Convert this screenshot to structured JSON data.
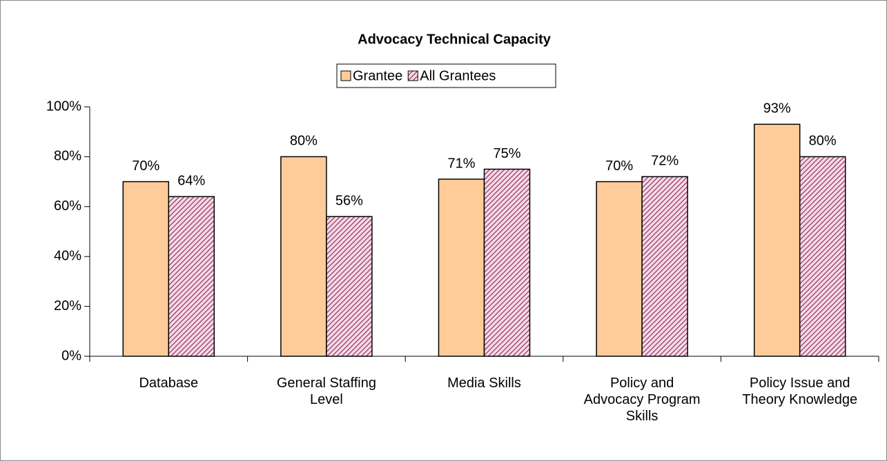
{
  "chart_data": {
    "type": "bar",
    "title": "Advocacy Technical Capacity",
    "categories": [
      "Database",
      "General Staffing Level",
      "Media Skills",
      "Policy and Advocacy Program Skills",
      "Policy Issue and Theory Knowledge"
    ],
    "series": [
      {
        "name": "Grantee",
        "color": "#ffcc99",
        "values": [
          70,
          80,
          71,
          70,
          93
        ],
        "value_labels": [
          "70%",
          "80%",
          "71%",
          "70%",
          "93%"
        ]
      },
      {
        "name": "All Grantees",
        "color": "#993366",
        "pattern": "hatch",
        "values": [
          64,
          56,
          75,
          72,
          80
        ],
        "value_labels": [
          "64%",
          "56%",
          "75%",
          "72%",
          "80%"
        ]
      }
    ],
    "ylim": [
      0,
      100
    ],
    "yticks": [
      {
        "value": 0,
        "label": "0%"
      },
      {
        "value": 20,
        "label": "20%"
      },
      {
        "value": 40,
        "label": "40%"
      },
      {
        "value": 60,
        "label": "60%"
      },
      {
        "value": 80,
        "label": "80%"
      },
      {
        "value": 100,
        "label": "100%"
      }
    ],
    "grid": false,
    "legend": "top"
  }
}
